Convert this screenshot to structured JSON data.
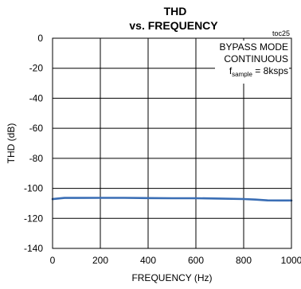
{
  "chart_data": {
    "type": "line",
    "title": "THD",
    "subtitle": "vs. FREQUENCY",
    "figure_code": "toc25",
    "xlabel": "FREQUENCY (Hz)",
    "ylabel": "THD (dB)",
    "xlim": [
      0,
      1000
    ],
    "ylim": [
      -140,
      0
    ],
    "x_ticks": [
      0,
      200,
      400,
      600,
      800,
      1000
    ],
    "y_ticks": [
      0,
      -20,
      -40,
      -60,
      -80,
      -100,
      -120,
      -140
    ],
    "grid": true,
    "annotation": {
      "line1": "BYPASS MODE",
      "line2": "CONTINUOUS",
      "fsample_main": "f",
      "fsample_sub": "sample",
      "fsample_rest": " = 8ksps"
    },
    "line_color": "#3a6eb5",
    "series": [
      {
        "x": [
          0,
          20,
          50,
          100,
          200,
          300,
          400,
          500,
          600,
          700,
          800,
          850,
          900,
          950,
          1000
        ],
        "y": [
          -107.2,
          -106.8,
          -106.4,
          -106.4,
          -106.3,
          -106.3,
          -106.5,
          -106.6,
          -106.6,
          -106.8,
          -107.1,
          -107.5,
          -108.0,
          -108.1,
          -108.1
        ]
      }
    ]
  }
}
